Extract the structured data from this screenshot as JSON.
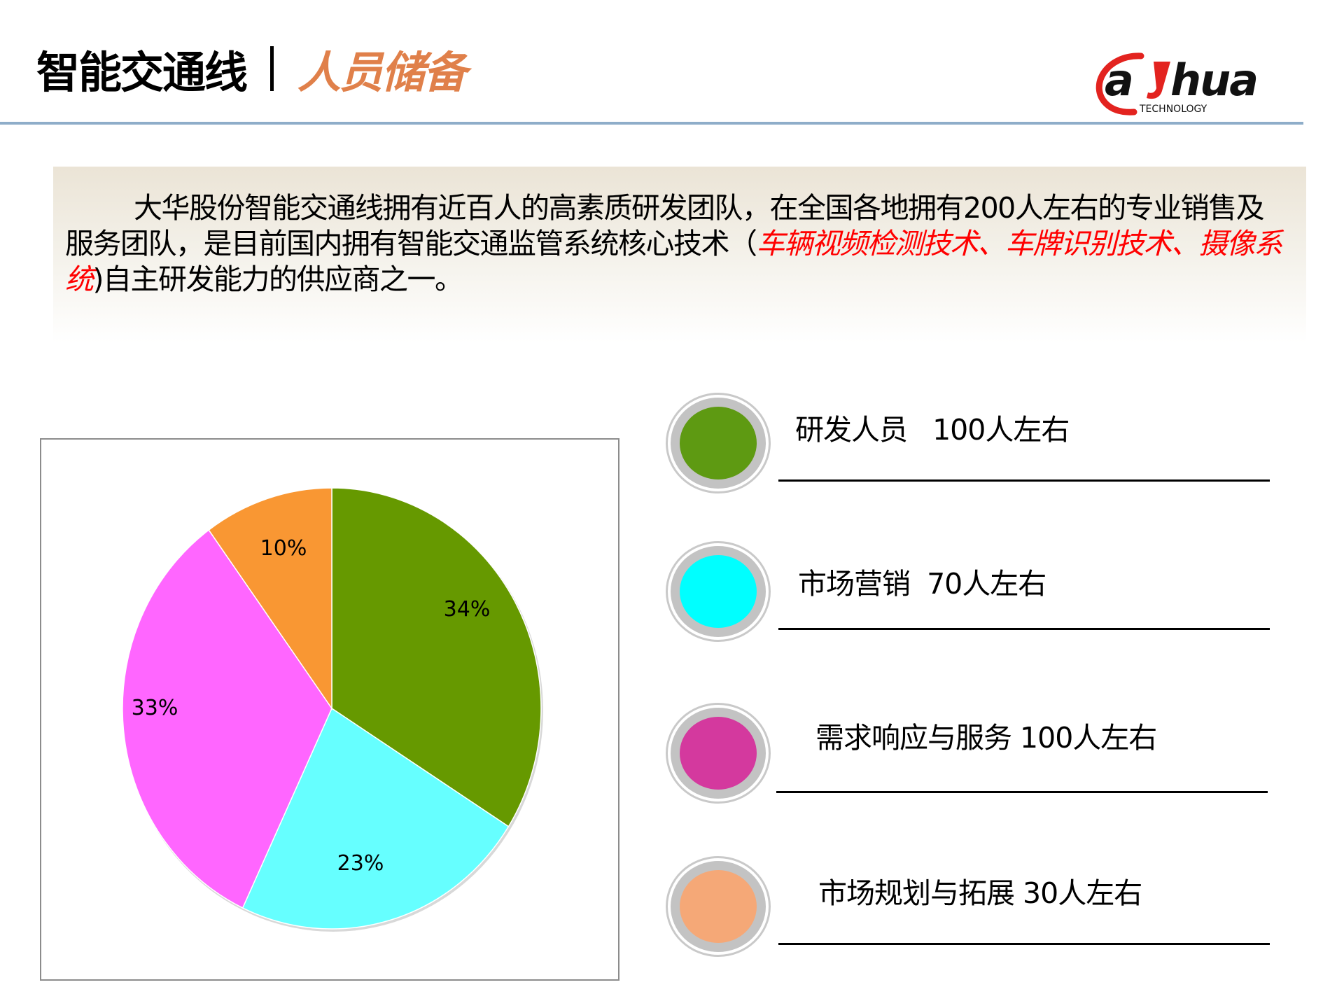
{
  "header": {
    "title_main": "智能交通线",
    "title_sub": "人员储备",
    "logo_text": "alhua",
    "logo_sub": "TECHNOLOGY"
  },
  "intro": {
    "part1": "大华股份智能交通线拥有近百人的高素质研发团队，在全国各地拥有200人左右的专业销售及服务团队，是目前国内拥有智能交通监管系统核心技术（",
    "highlight": "车辆视频检测技术、车牌识别技术、摄像系统",
    "part2": ")自主研发能力的供应商之一。"
  },
  "legend": {
    "items": [
      {
        "label": "研发人员   100人左右",
        "color": "#5e9a12"
      },
      {
        "label": "市场营销  70人左右",
        "color": "#00ffff"
      },
      {
        "label": "需求响应与服务 100人左右",
        "color": "#d4399e"
      },
      {
        "label": "市场规划与拓展 30人左右",
        "color": "#f5a877"
      }
    ]
  },
  "chart_data": {
    "type": "pie",
    "title": "",
    "categories": [
      "研发人员",
      "市场营销",
      "需求响应与服务",
      "市场规划与拓展"
    ],
    "values": [
      34,
      23,
      33,
      10
    ],
    "labels": [
      "34%",
      "23%",
      "33%",
      "10%"
    ],
    "colors": [
      "#669900",
      "#66ffff",
      "#ff66ff",
      "#f99733"
    ],
    "start_angle_deg": 0,
    "direction": "clockwise",
    "legend": "none (external legend at right)"
  }
}
